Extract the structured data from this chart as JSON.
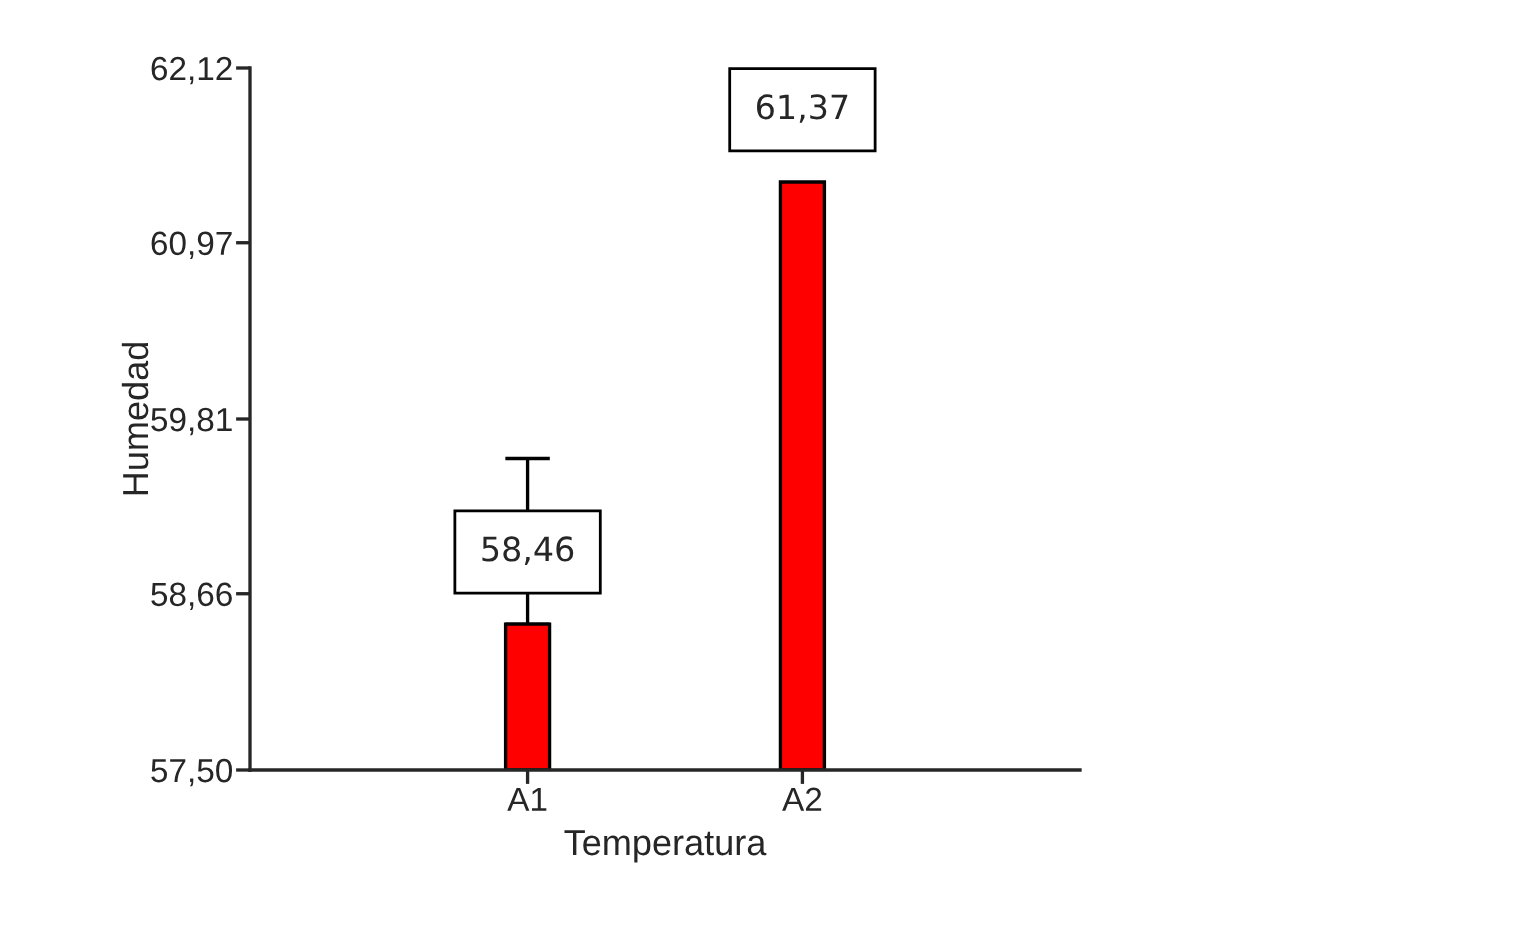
{
  "chart_data": {
    "type": "bar",
    "xlabel": "Temperatura",
    "ylabel": "Humedad",
    "categories": [
      "A1",
      "A2"
    ],
    "values": [
      58.46,
      61.37
    ],
    "errors": [
      1.09,
      null
    ],
    "value_labels": [
      "58,46",
      "61,37"
    ],
    "color": "#ff0000",
    "ylim": [
      57.5,
      62.12
    ],
    "yticks": [
      {
        "value": 57.5,
        "label": "57,50"
      },
      {
        "value": 58.66,
        "label": "58,66"
      },
      {
        "value": 59.81,
        "label": "59,81"
      },
      {
        "value": 60.97,
        "label": "60,97"
      },
      {
        "value": 62.12,
        "label": "62,12"
      }
    ],
    "grid": false,
    "legend": false
  }
}
